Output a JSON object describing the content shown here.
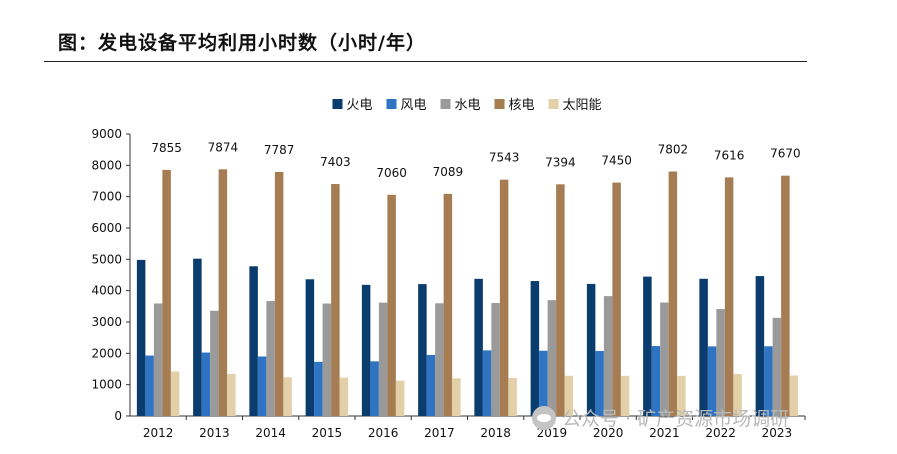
{
  "page_title": "图：发电设备平均利用小时数（小时/年）",
  "watermark": "公众号 · 矿产资源市场调研",
  "chart_data": {
    "type": "bar",
    "title": "",
    "xlabel": "",
    "ylabel": "",
    "ylim": [
      0,
      9000
    ],
    "yticks": [
      0,
      1000,
      2000,
      3000,
      4000,
      5000,
      6000,
      7000,
      8000,
      9000
    ],
    "grid": false,
    "legend_position": "top-center",
    "categories": [
      "2012",
      "2013",
      "2014",
      "2015",
      "2016",
      "2017",
      "2018",
      "2019",
      "2020",
      "2021",
      "2022",
      "2023"
    ],
    "series": [
      {
        "name": "火电",
        "color": "#0b3c6e",
        "values": [
          4982,
          5021,
          4778,
          4364,
          4186,
          4209,
          4378,
          4307,
          4216,
          4448,
          4379,
          4466
        ]
      },
      {
        "name": "风电",
        "color": "#2e74c2",
        "values": [
          1929,
          2025,
          1900,
          1728,
          1745,
          1948,
          2095,
          2082,
          2073,
          2232,
          2221,
          2225
        ]
      },
      {
        "name": "水电",
        "color": "#9a9a9a",
        "values": [
          3591,
          3359,
          3669,
          3590,
          3619,
          3597,
          3607,
          3697,
          3827,
          3622,
          3412,
          3133
        ]
      },
      {
        "name": "核电",
        "color": "#a67c52",
        "values": [
          7855,
          7874,
          7787,
          7403,
          7060,
          7089,
          7543,
          7394,
          7450,
          7802,
          7616,
          7670
        ],
        "data_labels": true
      },
      {
        "name": "太阳能",
        "color": "#e3d0a8",
        "values": [
          1423,
          1342,
          1235,
          1225,
          1129,
          1204,
          1212,
          1285,
          1281,
          1281,
          1340,
          1292
        ]
      }
    ]
  }
}
